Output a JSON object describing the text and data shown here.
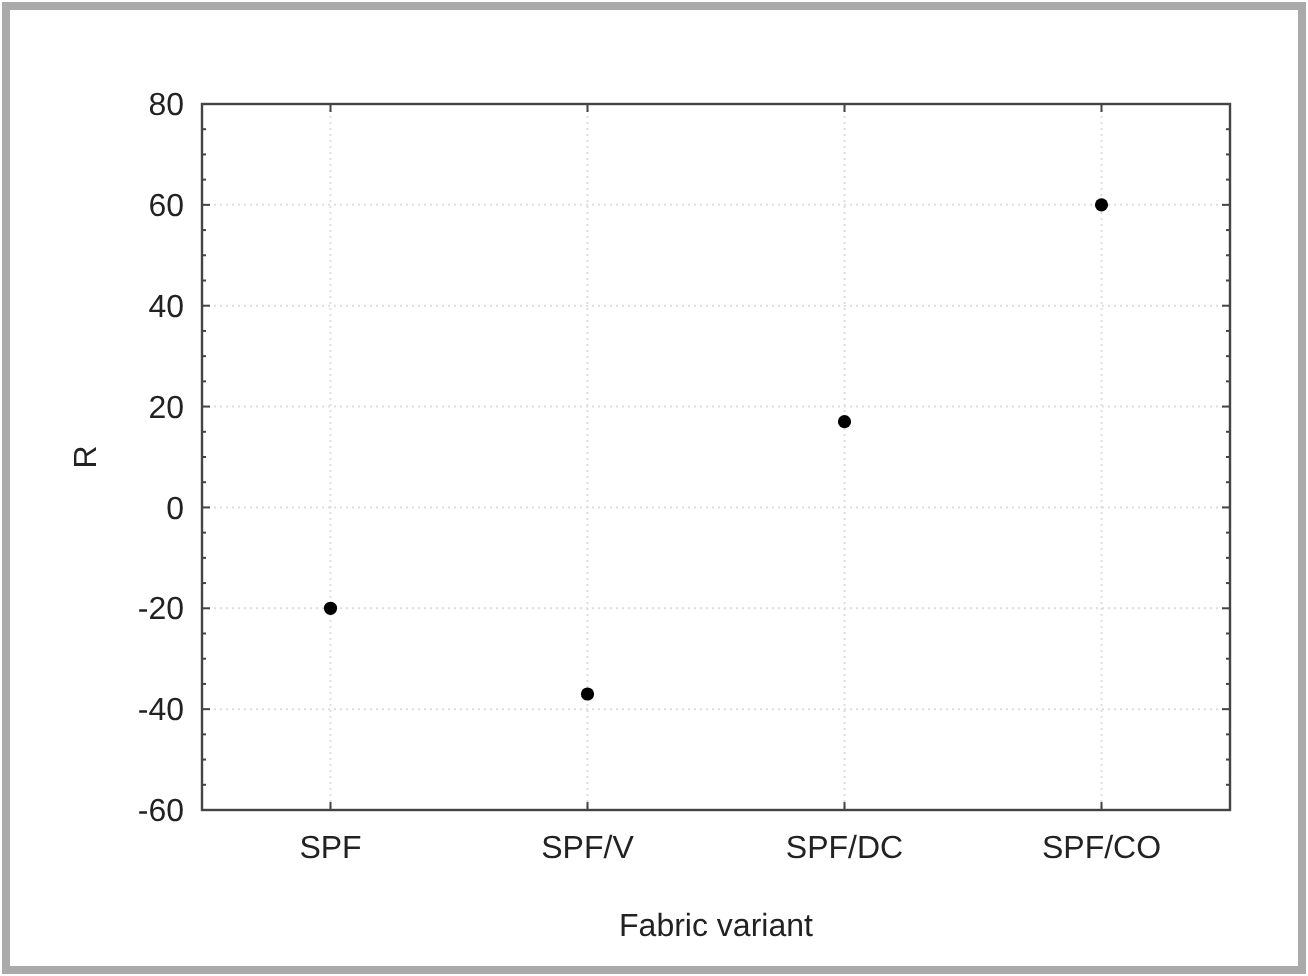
{
  "chart_data": {
    "type": "scatter",
    "xlabel": "Fabric variant",
    "ylabel": "R",
    "categories": [
      "SPF",
      "SPF/V",
      "SPF/DC",
      "SPF/CO"
    ],
    "values": [
      -20,
      -37,
      17,
      60
    ],
    "color": "#000000",
    "ylim": [
      -60,
      80
    ],
    "yticks": [
      -60,
      -40,
      -20,
      0,
      20,
      40,
      60,
      80
    ],
    "grid": true,
    "marker": "circle"
  }
}
